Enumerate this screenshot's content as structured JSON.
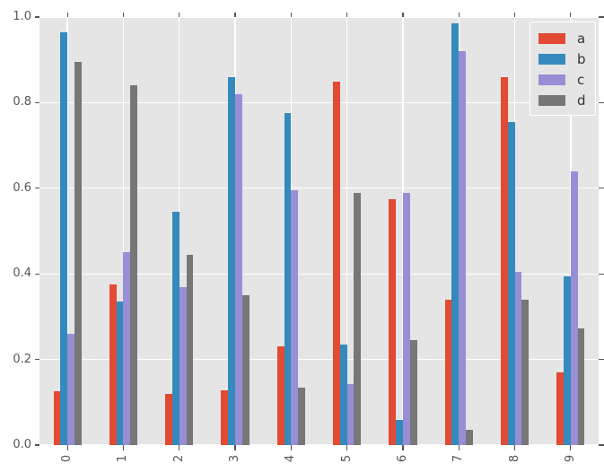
{
  "figure": {
    "background": "#FFFFFF",
    "axes_background": "#E5E5E5",
    "grid_color": "#FFFFFF",
    "tick_color": "#555555",
    "tick_label_color": "#555555",
    "legend_text_color": "#333333",
    "legend_border_color": "#FFFFFF"
  },
  "chart_data": {
    "type": "bar",
    "title": "",
    "xlabel": "",
    "ylabel": "",
    "categories": [
      "0",
      "1",
      "2",
      "3",
      "4",
      "5",
      "6",
      "7",
      "8",
      "9"
    ],
    "series": [
      {
        "name": "a",
        "color": "#E24A33",
        "values": [
          0.125,
          0.375,
          0.12,
          0.128,
          0.23,
          0.85,
          0.575,
          0.34,
          0.86,
          0.17
        ]
      },
      {
        "name": "b",
        "color": "#348ABD",
        "values": [
          0.965,
          0.335,
          0.545,
          0.86,
          0.775,
          0.235,
          0.058,
          0.985,
          0.755,
          0.395
        ]
      },
      {
        "name": "c",
        "color": "#988ED5",
        "values": [
          0.26,
          0.45,
          0.37,
          0.82,
          0.595,
          0.143,
          0.59,
          0.92,
          0.405,
          0.64
        ]
      },
      {
        "name": "d",
        "color": "#777777",
        "values": [
          0.895,
          0.84,
          0.445,
          0.35,
          0.135,
          0.59,
          0.245,
          0.036,
          0.34,
          0.273
        ]
      }
    ],
    "ylim": [
      0.0,
      1.0
    ],
    "yticks": [
      "0.0",
      "0.2",
      "0.4",
      "0.6",
      "0.8",
      "1.0"
    ],
    "grid": true,
    "grid_style": "white-on-gray",
    "xtick_rotation": 90,
    "legend_position": "upper right",
    "legend_entries": [
      "a",
      "b",
      "c",
      "d"
    ]
  }
}
